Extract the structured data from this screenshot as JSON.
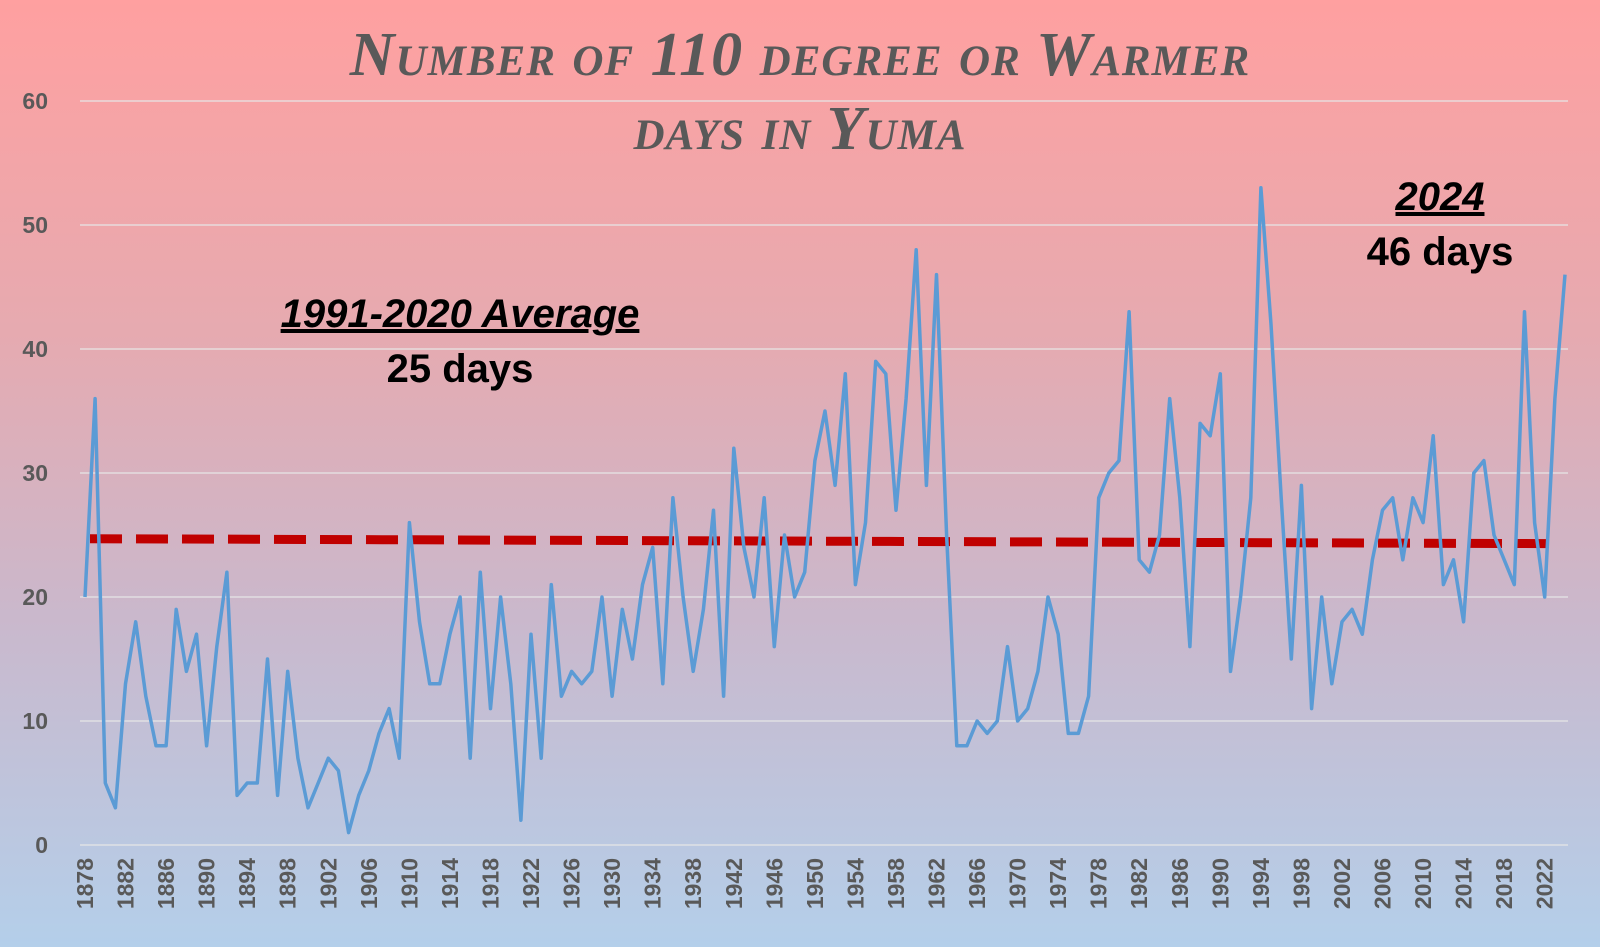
{
  "title_line1": "Number of 110 degree or Warmer",
  "title_line2": "days in Yuma",
  "annotations": {
    "average_heading": "1991-2020 Average",
    "average_value": "25 days",
    "latest_heading": "2024",
    "latest_value": "46 days"
  },
  "colors": {
    "line": "#5b9bd5",
    "average_line": "#c00000",
    "grid": "#e6e6e6",
    "text": "#595959"
  },
  "chart_data": {
    "type": "line",
    "title": "Number of 110 degree or Warmer days in Yuma",
    "xlabel": "",
    "ylabel": "",
    "ylim": [
      0,
      60
    ],
    "yticks": [
      0,
      10,
      20,
      30,
      40,
      50,
      60
    ],
    "xticks": [
      1878,
      1882,
      1886,
      1890,
      1894,
      1898,
      1902,
      1906,
      1910,
      1914,
      1918,
      1922,
      1926,
      1930,
      1934,
      1938,
      1942,
      1946,
      1950,
      1954,
      1958,
      1962,
      1966,
      1970,
      1974,
      1978,
      1982,
      1986,
      1990,
      1994,
      1998,
      2002,
      2006,
      2010,
      2014,
      2018,
      2022
    ],
    "grid": true,
    "legend": "none",
    "x_start": 1878,
    "values": [
      20,
      36,
      5,
      3,
      13,
      18,
      12,
      8,
      8,
      19,
      14,
      17,
      8,
      16,
      22,
      4,
      5,
      5,
      15,
      4,
      14,
      7,
      3,
      5,
      7,
      6,
      1,
      4,
      6,
      9,
      11,
      7,
      26,
      18,
      13,
      13,
      17,
      20,
      7,
      22,
      11,
      20,
      13,
      2,
      17,
      7,
      21,
      12,
      14,
      13,
      14,
      20,
      12,
      19,
      15,
      21,
      24,
      13,
      28,
      20,
      14,
      19,
      27,
      12,
      32,
      24,
      20,
      28,
      16,
      25,
      20,
      22,
      31,
      35,
      29,
      38,
      21,
      26,
      39,
      38,
      27,
      36,
      48,
      29,
      46,
      25,
      8,
      8,
      10,
      9,
      10,
      16,
      10,
      11,
      14,
      20,
      17,
      9,
      9,
      12,
      28,
      30,
      31,
      43,
      23,
      22,
      25,
      36,
      28,
      16,
      34,
      33,
      38,
      14,
      20,
      28,
      53,
      42,
      28,
      15,
      29,
      11,
      20,
      13,
      18,
      19,
      17,
      23,
      27,
      28,
      23,
      28,
      26,
      33,
      21,
      23,
      18,
      30,
      31,
      25,
      23,
      21,
      43,
      26,
      20,
      36,
      46
    ],
    "reference_line": {
      "label": "1991-2020 Average",
      "value": 24.5
    }
  }
}
